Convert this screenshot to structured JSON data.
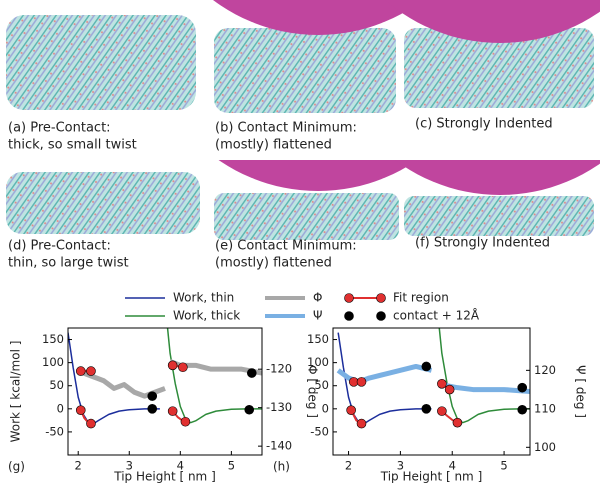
{
  "panels": [
    {
      "lines": [
        "(a) Pre-Contact:",
        "thick, so small twist"
      ]
    },
    {
      "lines": [
        "(b) Contact Minimum:",
        "(mostly) flattened"
      ]
    },
    {
      "lines": [
        "(c) Strongly Indented"
      ]
    },
    {
      "lines": [
        "(d) Pre-Contact:",
        "thin, so large twist"
      ]
    },
    {
      "lines": [
        "(e) Contact Minimum:",
        "(mostly) flattened"
      ]
    },
    {
      "lines": [
        "(f) Strongly Indented"
      ]
    }
  ],
  "chart_data": [
    {
      "type": "line",
      "panel": "(g)",
      "xlabel": "Tip Height [ nm ]",
      "ylabel": "Work [ kcal/mol ]",
      "y2label": "Φ [ deg ]",
      "xlim": [
        1.8,
        5.6
      ],
      "xticks": [
        2,
        3,
        4,
        5
      ],
      "ylim": [
        -100,
        175
      ],
      "yticks": [
        -50,
        0,
        50,
        100,
        150
      ],
      "y2lim": [
        -142.3,
        -109.3
      ],
      "y2ticks": [
        -140,
        -130,
        -120
      ],
      "series": [
        {
          "name": "Work, thin",
          "color": "#1c2e9c",
          "width": 1.5,
          "x": [
            1.8,
            1.9,
            2.0,
            2.1,
            2.2,
            2.3,
            2.4,
            2.6,
            2.8,
            3.0,
            3.3,
            3.6
          ],
          "values": [
            165,
            90,
            25,
            -12,
            -30,
            -32,
            -25,
            -12,
            -5,
            -2,
            0,
            0
          ]
        },
        {
          "name": "Work, thick",
          "color": "#2e8b3a",
          "width": 1.5,
          "x": [
            3.75,
            3.8,
            3.9,
            4.0,
            4.1,
            4.2,
            4.3,
            4.5,
            4.7,
            5.0,
            5.3,
            5.6
          ],
          "values": [
            175,
            120,
            55,
            5,
            -22,
            -30,
            -26,
            -12,
            -5,
            -1,
            0,
            0
          ]
        },
        {
          "name": "Φ",
          "color": "#a8a8a8",
          "width": 5,
          "axis": "y2",
          "x": [
            2.0,
            2.1,
            2.3,
            2.5,
            2.7,
            2.9,
            3.1,
            3.3,
            3.5,
            3.7,
            3.75,
            3.8,
            4.0,
            4.3,
            4.6,
            4.9,
            5.2,
            5.6
          ],
          "values": [
            -120,
            -121,
            -122,
            -123,
            -125,
            -124,
            -126,
            -127,
            -126,
            -125,
            null,
            -118,
            -119,
            -119,
            -120,
            -120,
            -120,
            -121
          ]
        },
        {
          "name": "Fit region",
          "color": "#e03030",
          "width": 2,
          "axis": "y2",
          "markers": "ends",
          "x": [
            2.05,
            2.25,
            3.0,
            3.85,
            4.05
          ],
          "values": [
            -120.5,
            -120.5,
            null,
            -119,
            -119.5
          ]
        },
        {
          "color": "#e03030",
          "width": 2,
          "markers": "ends",
          "x": [
            2.05,
            2.12,
            2.2,
            2.25,
            3.0,
            3.85,
            3.95,
            4.05,
            4.1
          ],
          "values": [
            -3,
            -20,
            -30,
            -32,
            null,
            -5,
            -18,
            -26,
            -28
          ]
        },
        {
          "name": "contact + 12Å",
          "color": "#000000",
          "axis": "y2",
          "markers": "all",
          "line": false,
          "x": [
            3.45,
            5.4
          ],
          "values": [
            -127,
            -121
          ]
        },
        {
          "color": "#000000",
          "markers": "all",
          "line": false,
          "x": [
            3.45,
            5.35
          ],
          "values": [
            0,
            -2
          ]
        }
      ]
    },
    {
      "type": "line",
      "panel": "(h)",
      "xlabel": "Tip Height [ nm ]",
      "y2label": "Ψ [ deg ]",
      "xlim": [
        1.7,
        5.5
      ],
      "xticks": [
        2,
        3,
        4,
        5
      ],
      "ylim": [
        -100,
        175
      ],
      "yticks": [
        -50,
        0,
        50,
        100,
        150
      ],
      "y2lim": [
        98,
        131
      ],
      "y2ticks": [
        100,
        110,
        120
      ],
      "series": [
        {
          "color": "#1c2e9c",
          "width": 1.5,
          "x": [
            1.8,
            1.9,
            2.0,
            2.1,
            2.2,
            2.3,
            2.4,
            2.6,
            2.8,
            3.0,
            3.3,
            3.6
          ],
          "values": [
            165,
            90,
            25,
            -12,
            -30,
            -32,
            -25,
            -12,
            -5,
            -2,
            0,
            0
          ]
        },
        {
          "color": "#2e8b3a",
          "width": 1.5,
          "x": [
            3.75,
            3.8,
            3.9,
            4.0,
            4.1,
            4.2,
            4.3,
            4.5,
            4.7,
            5.0,
            5.3,
            5.5
          ],
          "values": [
            175,
            120,
            55,
            5,
            -22,
            -30,
            -26,
            -12,
            -5,
            -1,
            0,
            0
          ]
        },
        {
          "name": "Ψ",
          "color": "#7ab0e3",
          "width": 5,
          "axis": "y2",
          "x": [
            1.8,
            2.0,
            2.2,
            2.4,
            2.7,
            3.0,
            3.3,
            3.6,
            3.75,
            3.8,
            3.9,
            4.1,
            4.4,
            4.7,
            5.0,
            5.5
          ],
          "values": [
            120,
            118,
            117,
            118,
            119,
            120,
            121,
            120,
            null,
            117,
            116,
            115.5,
            115,
            115,
            115,
            114.5
          ]
        },
        {
          "color": "#e03030",
          "width": 2,
          "axis": "y2",
          "markers": "ends",
          "x": [
            2.1,
            2.25,
            3.0,
            3.8,
            3.95
          ],
          "values": [
            117,
            117,
            null,
            116.5,
            115
          ]
        },
        {
          "color": "#e03030",
          "width": 2,
          "markers": "ends",
          "x": [
            2.05,
            2.15,
            2.25,
            3.0,
            3.8,
            3.9,
            4.0,
            4.1
          ],
          "values": [
            -3,
            -25,
            -32,
            null,
            -5,
            -15,
            -24,
            -30
          ]
        },
        {
          "color": "#000000",
          "axis": "y2",
          "markers": "all",
          "line": false,
          "x": [
            3.5,
            5.35
          ],
          "values": [
            121,
            115.5
          ]
        },
        {
          "color": "#000000",
          "markers": "all",
          "line": false,
          "x": [
            3.5,
            5.35
          ],
          "values": [
            0,
            -2
          ]
        }
      ]
    }
  ]
}
